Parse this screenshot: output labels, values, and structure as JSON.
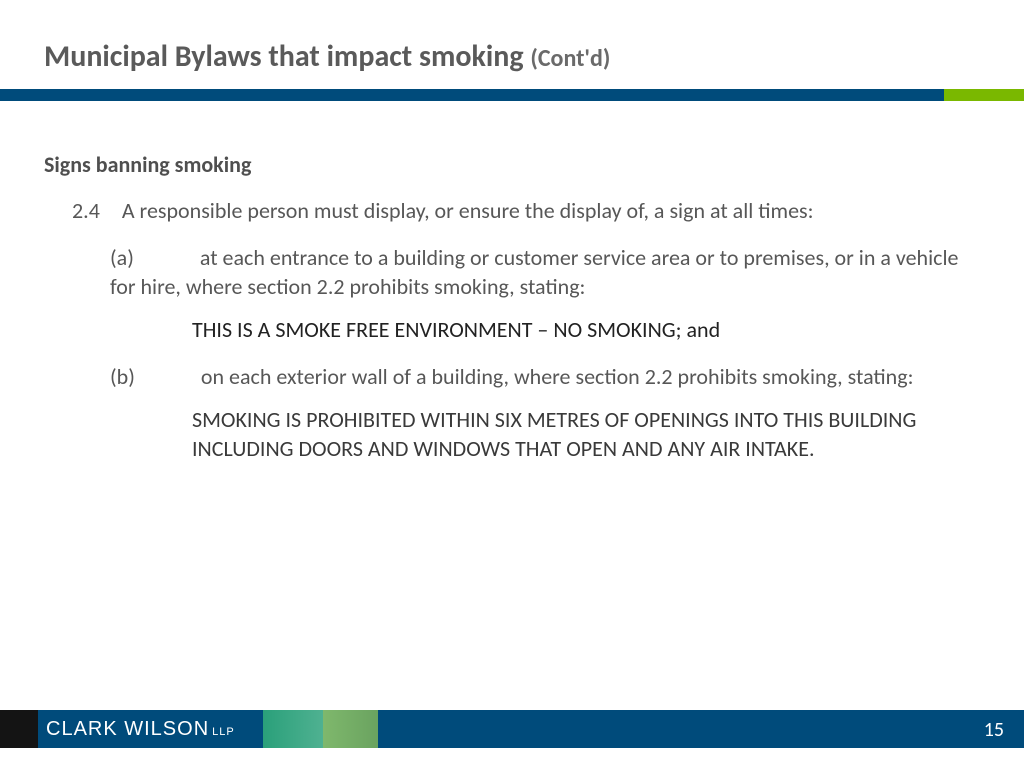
{
  "title": {
    "main": "Municipal Bylaws that impact smoking ",
    "contd": "(Cont'd)"
  },
  "colors": {
    "bar_navy": "#004b7b",
    "bar_green": "#7ab800",
    "title_color": "#5a5a5a",
    "body_color": "#575757",
    "highlight_color": "#222222",
    "footer_black": "#141414",
    "footer_teal": "#2aa07a",
    "footer_green": "#7fb86c",
    "page_num_color": "#ffffff"
  },
  "content": {
    "subhead": "Signs banning smoking",
    "p1": "2.4 A responsible person must display, or ensure the display of, a sign at all times:",
    "pa": "(a)   at each entrance to a building or customer service area or to premises, or in a vehicle for hire, where section 2.2 prohibits smoking, stating:",
    "sign1": "THIS IS A SMOKE FREE ENVIRONMENT – NO SMOKING; and",
    "pb": "(b)   on each exterior wall of a building, where section 2.2 prohibits smoking, stating:",
    "sign2": "SMOKING IS PROHIBITED WITHIN SIX METRES OF OPENINGS INTO THIS BUILDING INCLUDING DOORS AND WINDOWS THAT OPEN AND ANY AIR INTAKE."
  },
  "footer": {
    "logo_main": "CLARK WILSON",
    "logo_suffix": "LLP",
    "page_number": "15"
  }
}
